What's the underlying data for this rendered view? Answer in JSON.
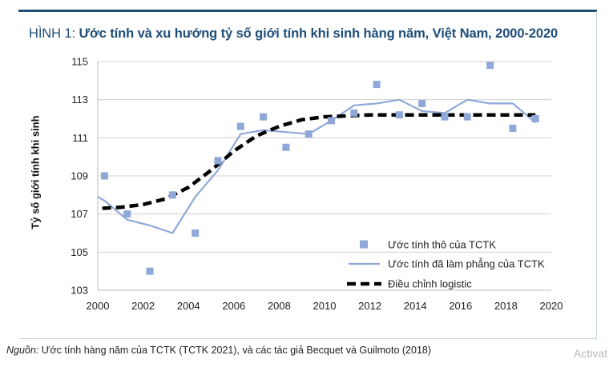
{
  "figure": {
    "number": "HÌNH 1:",
    "title": "Ước tính và xu hướng tỷ số giới tính khi sinh hàng năm, Việt Nam, 2000-2020"
  },
  "source": {
    "label": "Nguồn:",
    "text": "Ước tính hàng năm của TCTK (TCTK 2021), và các tác giả Becquet và Guilmoto (2018)"
  },
  "watermark": "Activat",
  "colors": {
    "title": "#1f4e79",
    "crude": "#8fa8d8",
    "smoothed": "#8fa8d8",
    "logistic": "#000000"
  },
  "chart_data": {
    "type": "line",
    "title": "",
    "xlabel": "",
    "ylabel": "Tỷ số giới tính khi sinh",
    "xlim": [
      2000,
      2020
    ],
    "ylim": [
      103,
      115
    ],
    "xticks": [
      "2000",
      "2002",
      "2004",
      "2006",
      "2008",
      "2010",
      "2012",
      "2014",
      "2016",
      "2018",
      "2020"
    ],
    "yticks": [
      "103",
      "105",
      "107",
      "109",
      "111",
      "113",
      "115"
    ],
    "grid": "horizontal",
    "legend_position": "bottom-right",
    "series": [
      {
        "name": "Ước tính thô của TCTK",
        "style": "markers-square",
        "x": [
          2000.3,
          2001.3,
          2002.3,
          2003.3,
          2004.3,
          2005.3,
          2006.3,
          2007.3,
          2008.3,
          2009.3,
          2010.3,
          2011.3,
          2012.3,
          2013.3,
          2014.3,
          2015.3,
          2016.3,
          2017.3,
          2018.3,
          2019.3
        ],
        "y": [
          109.0,
          107.0,
          104.0,
          108.0,
          106.0,
          109.8,
          111.6,
          112.1,
          110.5,
          111.2,
          111.9,
          112.3,
          113.8,
          112.2,
          112.8,
          112.1,
          112.1,
          114.8,
          111.5,
          112.0
        ]
      },
      {
        "name": "Ước tính đã làm phẳng của TCTK",
        "style": "line",
        "x": [
          2000.0,
          2000.3,
          2001.3,
          2002.3,
          2003.3,
          2004.3,
          2005.3,
          2006.3,
          2007.3,
          2008.3,
          2009.3,
          2010.3,
          2011.3,
          2012.3,
          2013.3,
          2014.3,
          2015.3,
          2016.3,
          2017.3,
          2018.3,
          2019.3
        ],
        "y": [
          107.9,
          107.7,
          106.7,
          106.4,
          106.0,
          107.9,
          109.3,
          111.2,
          111.4,
          111.3,
          111.2,
          111.9,
          112.7,
          112.8,
          113.0,
          112.4,
          112.3,
          113.0,
          112.8,
          112.8,
          111.8
        ]
      },
      {
        "name": "Điều chỉnh logistic",
        "style": "dashed-thick",
        "x": [
          2000.2,
          2001,
          2002,
          2003,
          2004,
          2005,
          2006,
          2007,
          2008,
          2009,
          2010,
          2011,
          2012,
          2013,
          2014,
          2015,
          2016,
          2017,
          2018,
          2019.3
        ],
        "y": [
          107.3,
          107.35,
          107.5,
          107.8,
          108.4,
          109.3,
          110.3,
          111.1,
          111.6,
          111.95,
          112.1,
          112.15,
          112.2,
          112.2,
          112.2,
          112.2,
          112.2,
          112.2,
          112.2,
          112.2
        ]
      }
    ]
  }
}
